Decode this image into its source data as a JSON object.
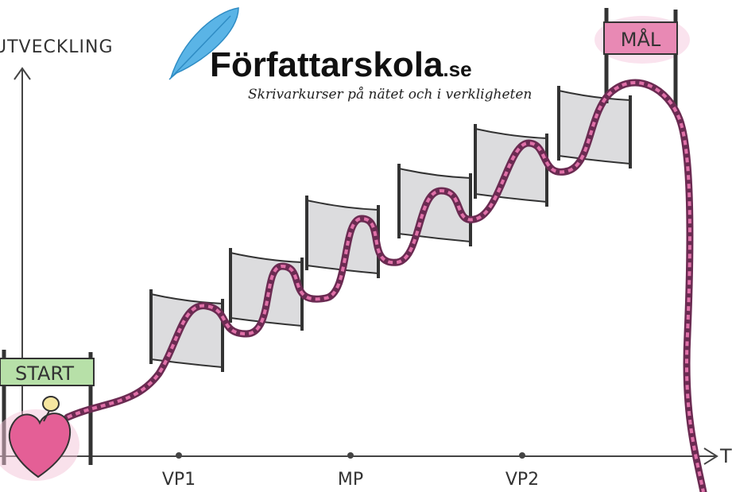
{
  "axis": {
    "y_label": "UTVECKLING",
    "x_label": "T"
  },
  "logo": {
    "name": "Författarskola",
    "suffix": ".se",
    "tagline": "Skrivarkurser på nätet och i verkligheten"
  },
  "banners": {
    "start": "START",
    "goal": "MÅL"
  },
  "milestones": [
    "VP1",
    "MP",
    "VP2"
  ]
}
